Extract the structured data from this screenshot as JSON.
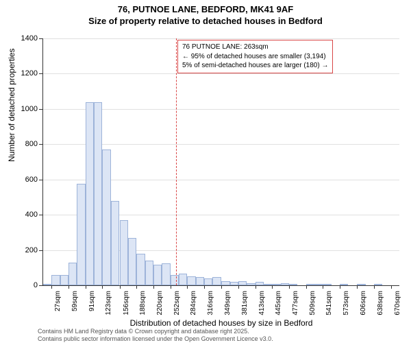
{
  "title_main": "76, PUTNOE LANE, BEDFORD, MK41 9AF",
  "title_sub": "Size of property relative to detached houses in Bedford",
  "y_axis_label": "Number of detached properties",
  "x_axis_label": "Distribution of detached houses by size in Bedford",
  "chart": {
    "type": "histogram",
    "background_color": "#ffffff",
    "grid_color": "#e0e0e0",
    "axis_color": "#333333",
    "bar_fill": "#dce5f5",
    "bar_border": "#9db3d9",
    "ref_line_color": "#d94545",
    "ylim": [
      0,
      1400
    ],
    "ytick_step": 200,
    "xlim_sqm": [
      11,
      686
    ],
    "x_tick_labels": [
      "27sqm",
      "59sqm",
      "91sqm",
      "123sqm",
      "156sqm",
      "188sqm",
      "220sqm",
      "252sqm",
      "284sqm",
      "316sqm",
      "349sqm",
      "381sqm",
      "413sqm",
      "445sqm",
      "477sqm",
      "509sqm",
      "541sqm",
      "573sqm",
      "606sqm",
      "638sqm",
      "670sqm"
    ],
    "bars": [
      {
        "x": 11,
        "count": 5
      },
      {
        "x": 27,
        "count": 60
      },
      {
        "x": 43,
        "count": 60
      },
      {
        "x": 59,
        "count": 130
      },
      {
        "x": 75,
        "count": 575
      },
      {
        "x": 91,
        "count": 1040
      },
      {
        "x": 107,
        "count": 1040
      },
      {
        "x": 123,
        "count": 770
      },
      {
        "x": 139,
        "count": 480
      },
      {
        "x": 156,
        "count": 370
      },
      {
        "x": 172,
        "count": 270
      },
      {
        "x": 188,
        "count": 180
      },
      {
        "x": 204,
        "count": 140
      },
      {
        "x": 220,
        "count": 115
      },
      {
        "x": 236,
        "count": 125
      },
      {
        "x": 252,
        "count": 60
      },
      {
        "x": 268,
        "count": 65
      },
      {
        "x": 284,
        "count": 50
      },
      {
        "x": 300,
        "count": 45
      },
      {
        "x": 316,
        "count": 38
      },
      {
        "x": 332,
        "count": 45
      },
      {
        "x": 349,
        "count": 25
      },
      {
        "x": 365,
        "count": 20
      },
      {
        "x": 381,
        "count": 25
      },
      {
        "x": 397,
        "count": 10
      },
      {
        "x": 413,
        "count": 18
      },
      {
        "x": 429,
        "count": 8
      },
      {
        "x": 445,
        "count": 4
      },
      {
        "x": 461,
        "count": 12
      },
      {
        "x": 477,
        "count": 3
      },
      {
        "x": 493,
        "count": 0
      },
      {
        "x": 509,
        "count": 3
      },
      {
        "x": 525,
        "count": 2
      },
      {
        "x": 541,
        "count": 2
      },
      {
        "x": 557,
        "count": 0
      },
      {
        "x": 573,
        "count": 3
      },
      {
        "x": 589,
        "count": 0
      },
      {
        "x": 606,
        "count": 2
      },
      {
        "x": 622,
        "count": 0
      },
      {
        "x": 638,
        "count": 2
      },
      {
        "x": 654,
        "count": 0
      },
      {
        "x": 670,
        "count": 0
      }
    ],
    "ref_line_x": 263,
    "bar_width_sqm": 16
  },
  "annotation": {
    "line1": "76 PUTNOE LANE: 263sqm",
    "line2": "← 95% of detached houses are smaller (3,194)",
    "line3": "5% of semi-detached houses are larger (180) →"
  },
  "footer": {
    "line1": "Contains HM Land Registry data © Crown copyright and database right 2025.",
    "line2": "Contains public sector information licensed under the Open Government Licence v3.0."
  }
}
